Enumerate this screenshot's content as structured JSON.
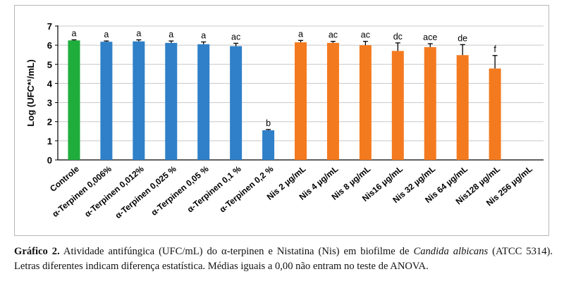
{
  "chart_data": {
    "type": "bar",
    "title": "",
    "xlabel": "",
    "ylabel": "Log (UFC*¹/mL)",
    "ylim": [
      0,
      7
    ],
    "yticks": [
      "0",
      "1",
      "2",
      "3",
      "4",
      "5",
      "6",
      "7"
    ],
    "grid": "horizontal",
    "categories": [
      "Controle",
      "α-Terpinen 0,006%",
      "α-Terpinen 0,012%",
      "α-Terpinen 0,025 %",
      "α-Terpinen 0,05 %",
      "α-Terpinen 0,1 %",
      "α-Terpinen 0,2 %",
      "Nis 2 µg/mL",
      "Nis 4 µg/mL",
      "Nis 8 µg/mL",
      "Nis16 µg/mL",
      "Nis 32 µg/mL",
      "Nis 64 µg/mL",
      "Nis128 µg/mL",
      "Nis 256 µg/mL"
    ],
    "values": [
      6.25,
      6.18,
      6.2,
      6.12,
      6.05,
      5.95,
      1.55,
      6.15,
      6.12,
      6.0,
      5.7,
      5.9,
      5.48,
      4.78,
      0
    ],
    "errors": [
      0.03,
      0.04,
      0.08,
      0.1,
      0.12,
      0.15,
      0.04,
      0.1,
      0.08,
      0.2,
      0.42,
      0.18,
      0.55,
      0.68,
      0
    ],
    "letters": [
      "a",
      "a",
      "a",
      "a",
      "a",
      "ac",
      "b",
      "a",
      "ac",
      "ac",
      "dc",
      "ace",
      "de",
      "f",
      ""
    ],
    "colors": {
      "control": "#1fad3c",
      "terpinen": "#2f80c8",
      "nistatina": "#f47a1f",
      "errorbar": "#000000",
      "grid": "#c8c8c8",
      "axis": "#000000"
    },
    "bar_color_groups": [
      "control",
      "terpinen",
      "terpinen",
      "terpinen",
      "terpinen",
      "terpinen",
      "terpinen",
      "nistatina",
      "nistatina",
      "nistatina",
      "nistatina",
      "nistatina",
      "nistatina",
      "nistatina",
      "nistatina"
    ]
  },
  "caption": {
    "label": "Gráfico 2.",
    "text_1": " Atividade antifúngica (UFC/mL) do α-terpinen e Nistatina (Nis) em biofilme de ",
    "italic": "Candida albicans",
    "text_2": " (ATCC 5314). Letras diferentes indicam diferença estatística. Médias iguais a 0,00 não entram no teste de ANOVA."
  }
}
